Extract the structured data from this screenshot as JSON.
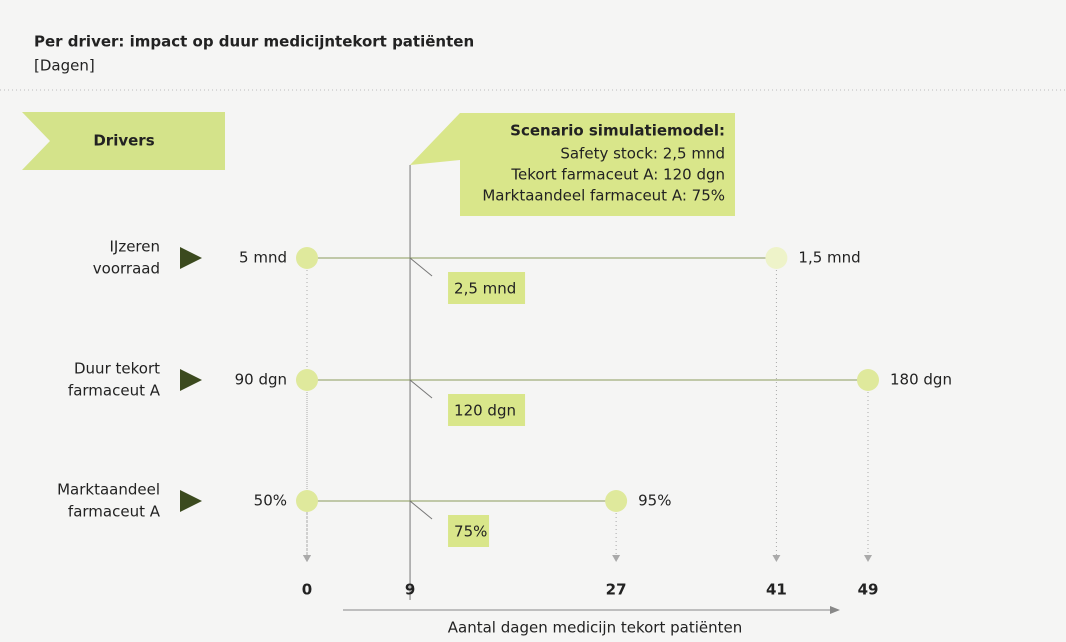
{
  "chart_data": {
    "type": "range",
    "title": "Per driver: impact op duur medicijntekort patiënten",
    "subtitle": "[Dagen]",
    "header_label": "Drivers",
    "scenario": {
      "title": "Scenario simulatiemodel:",
      "lines": [
        "Safety stock: 2,5 mnd",
        "Tekort farmaceut A: 120 dgn",
        "Marktaandeel farmaceut A: 75%"
      ]
    },
    "base": 9,
    "drivers": [
      {
        "name": [
          "IJzeren",
          "voorraad"
        ],
        "values": [
          0,
          41
        ],
        "value_labels": [
          "5 mnd",
          "1,5  mnd"
        ],
        "base_label": "2,5 mnd",
        "colors": [
          "#dfe99c",
          "#eef3c9"
        ]
      },
      {
        "name": [
          "Duur tekort",
          "farmaceut A"
        ],
        "values": [
          0,
          49
        ],
        "value_labels": [
          "90 dgn",
          "180  dgn"
        ],
        "base_label": "120 dgn",
        "colors": [
          "#dfe99c",
          "#dfe99c"
        ]
      },
      {
        "name": [
          "Marktaandeel",
          "farmaceut A"
        ],
        "values": [
          0,
          27
        ],
        "value_labels": [
          "50%",
          "95%"
        ],
        "base_label": "75%",
        "colors": [
          "#dfe99c",
          "#dfe99c"
        ]
      }
    ],
    "xlim": [
      0,
      49
    ],
    "xticks": [
      0,
      9,
      27,
      41,
      49
    ],
    "xlabel": "Aantal dagen medicijn tekort patiënten",
    "callout_color": "#d9e68a",
    "marker_color": "#3b4a1e"
  }
}
